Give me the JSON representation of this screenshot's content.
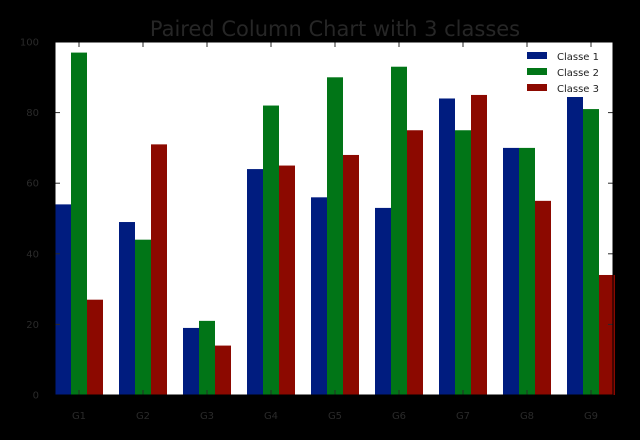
{
  "chart_data": {
    "type": "bar",
    "title": "Paired Column Chart with 3 classes",
    "xlabel": "",
    "ylabel": "",
    "categories": [
      "G1",
      "G2",
      "G3",
      "G4",
      "G5",
      "G6",
      "G7",
      "G8",
      "G9"
    ],
    "series": [
      {
        "name": "Classe 1",
        "color": "#001c7f",
        "values": [
          54,
          49,
          19,
          64,
          56,
          53,
          84,
          70,
          92
        ]
      },
      {
        "name": "Classe 2",
        "color": "#017517",
        "values": [
          97,
          44,
          21,
          82,
          90,
          93,
          75,
          70,
          81
        ]
      },
      {
        "name": "Classe 3",
        "color": "#8c0900",
        "values": [
          27,
          71,
          14,
          65,
          68,
          75,
          85,
          55,
          34
        ]
      }
    ],
    "ylim": [
      0,
      100
    ],
    "yticks": [
      0,
      20,
      40,
      60,
      80,
      100
    ],
    "grid": false,
    "legend_position": "top-right",
    "background": "#000000",
    "plot_background": "#ffffff"
  }
}
